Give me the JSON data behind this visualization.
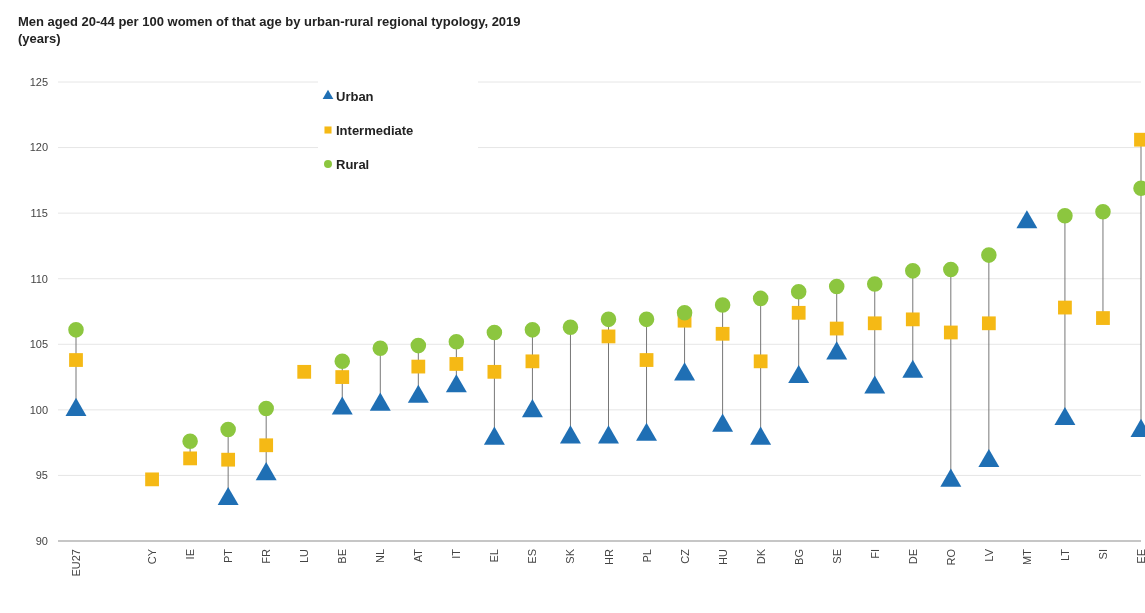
{
  "chart_data": {
    "type": "scatter",
    "title": "Men aged 20-44 per 100 women of that age by urban-rural regional typology, 2019",
    "subtitle": "(years)",
    "categories": [
      "EU27",
      null,
      "CY",
      "IE",
      "PT",
      "FR",
      "LU",
      "BE",
      "NL",
      "AT",
      "IT",
      "EL",
      "ES",
      "SK",
      "HR",
      "PL",
      "CZ",
      "HU",
      "DK",
      "BG",
      "SE",
      "FI",
      "DE",
      "RO",
      "LV",
      "MT",
      "LT",
      "SI",
      "EE"
    ],
    "series": [
      {
        "name": "Urban",
        "color": "#1f6fb4",
        "marker": "triangle",
        "values": [
          100.0,
          null,
          null,
          null,
          93.2,
          95.1,
          null,
          100.1,
          100.4,
          101.0,
          101.8,
          97.8,
          99.9,
          97.9,
          97.9,
          98.1,
          102.7,
          98.8,
          97.8,
          102.5,
          104.3,
          101.7,
          102.9,
          94.6,
          96.1,
          114.3,
          99.3,
          null,
          98.4
        ]
      },
      {
        "name": "Intermediate",
        "color": "#f5b915",
        "marker": "square",
        "values": [
          103.8,
          null,
          94.7,
          96.3,
          96.2,
          97.3,
          102.9,
          102.5,
          null,
          103.3,
          103.5,
          102.9,
          103.7,
          null,
          105.6,
          103.8,
          106.8,
          105.8,
          103.7,
          107.4,
          106.2,
          106.6,
          106.9,
          105.9,
          106.6,
          null,
          107.8,
          107.0,
          120.6
        ]
      },
      {
        "name": "Rural",
        "color": "#8cc63f",
        "marker": "circle",
        "values": [
          106.1,
          null,
          null,
          97.6,
          98.5,
          100.1,
          null,
          103.7,
          104.7,
          104.9,
          105.2,
          105.9,
          106.1,
          106.3,
          106.9,
          106.9,
          107.4,
          108.0,
          108.5,
          109.0,
          109.4,
          109.6,
          110.6,
          110.7,
          111.8,
          null,
          114.8,
          115.1,
          116.9
        ]
      }
    ],
    "ylim": [
      90,
      125
    ],
    "yticks": [
      90,
      95,
      100,
      105,
      110,
      115,
      120,
      125
    ],
    "grid": "y",
    "legend": "top"
  }
}
